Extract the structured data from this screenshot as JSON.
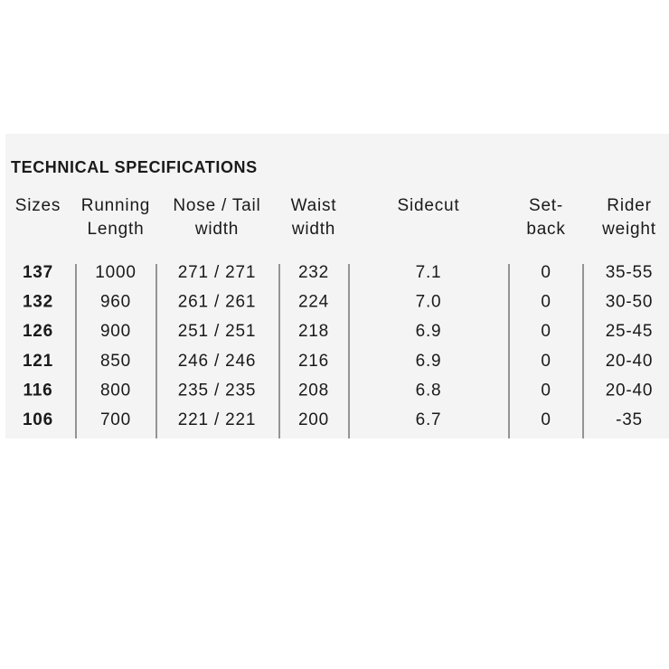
{
  "title": "TECHNICAL SPECIFICATIONS",
  "headers": [
    [
      "Sizes"
    ],
    [
      "Running",
      "Length"
    ],
    [
      "Nose / Tail",
      "width"
    ],
    [
      "Waist",
      "width"
    ],
    [
      "Sidecut"
    ],
    [
      "Set-",
      "back"
    ],
    [
      "Rider",
      "weight"
    ]
  ],
  "rows": [
    [
      "137",
      "1000",
      "271 / 271",
      "232",
      "7.1",
      "0",
      "35-55"
    ],
    [
      "132",
      "960",
      "261 / 261",
      "224",
      "7.0",
      "0",
      "30-50"
    ],
    [
      "126",
      "900",
      "251 / 251",
      "218",
      "6.9",
      "0",
      "25-45"
    ],
    [
      "121",
      "850",
      "246 / 246",
      "216",
      "6.9",
      "0",
      "20-40"
    ],
    [
      "116",
      "800",
      "235 / 235",
      "208",
      "6.8",
      "0",
      "20-40"
    ],
    [
      "106",
      "700",
      "221 / 221",
      "200",
      "6.7",
      "0",
      "-35"
    ]
  ]
}
